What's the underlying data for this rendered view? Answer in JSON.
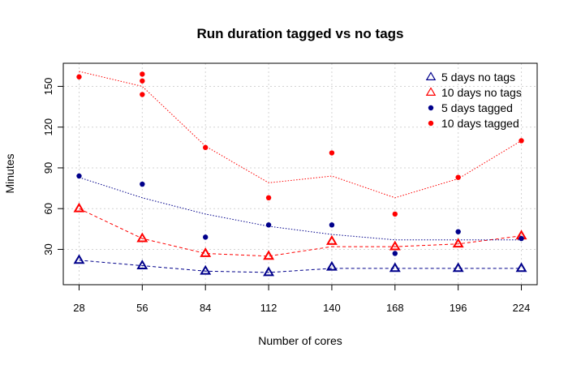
{
  "chart_data": {
    "type": "line",
    "title": "Run duration tagged vs no tags",
    "xlabel": "Number of cores",
    "ylabel": "Minutes",
    "x": [
      28,
      56,
      84,
      112,
      140,
      168,
      196,
      224
    ],
    "xlim": [
      21,
      231
    ],
    "ylim": [
      4,
      167
    ],
    "y_ticks": [
      30,
      60,
      90,
      120,
      150
    ],
    "grid": true,
    "legend_position": "top-right",
    "colors": {
      "blue": "#00008b",
      "red": "#ff0000",
      "grid": "#d3d3d3"
    },
    "series": [
      {
        "name": "5 days no tags",
        "color": "#00008b",
        "marker": "open-triangle",
        "values": [
          22,
          18,
          14,
          13,
          17,
          16,
          16,
          16
        ],
        "trend": [
          22,
          18,
          14,
          13,
          16,
          16,
          16,
          16
        ],
        "trend_style": "dashed"
      },
      {
        "name": "10 days no tags",
        "color": "#ff0000",
        "marker": "open-triangle",
        "values": [
          60,
          38,
          27,
          25,
          36,
          32,
          34,
          40
        ],
        "trend": [
          60,
          38,
          27,
          25,
          32,
          32,
          34,
          40
        ],
        "trend_style": "dashed"
      },
      {
        "name": "5 days tagged",
        "color": "#00008b",
        "marker": "filled-circle",
        "points": [
          [
            28,
            84
          ],
          [
            56,
            78
          ],
          [
            84,
            39
          ],
          [
            112,
            48
          ],
          [
            140,
            48
          ],
          [
            168,
            27
          ],
          [
            196,
            43
          ],
          [
            224,
            38
          ]
        ],
        "trend": [
          83,
          68,
          56,
          47,
          41,
          37,
          37,
          37
        ],
        "trend_style": "dotted"
      },
      {
        "name": "10 days tagged",
        "color": "#ff0000",
        "marker": "filled-circle",
        "points": [
          [
            28,
            157
          ],
          [
            56,
            159
          ],
          [
            56,
            154
          ],
          [
            56,
            144
          ],
          [
            84,
            105
          ],
          [
            112,
            68
          ],
          [
            140,
            101
          ],
          [
            168,
            56
          ],
          [
            196,
            83
          ],
          [
            224,
            110
          ]
        ],
        "trend": [
          161,
          150,
          106,
          79,
          84,
          68,
          82,
          110
        ],
        "trend_style": "dotted"
      }
    ]
  }
}
